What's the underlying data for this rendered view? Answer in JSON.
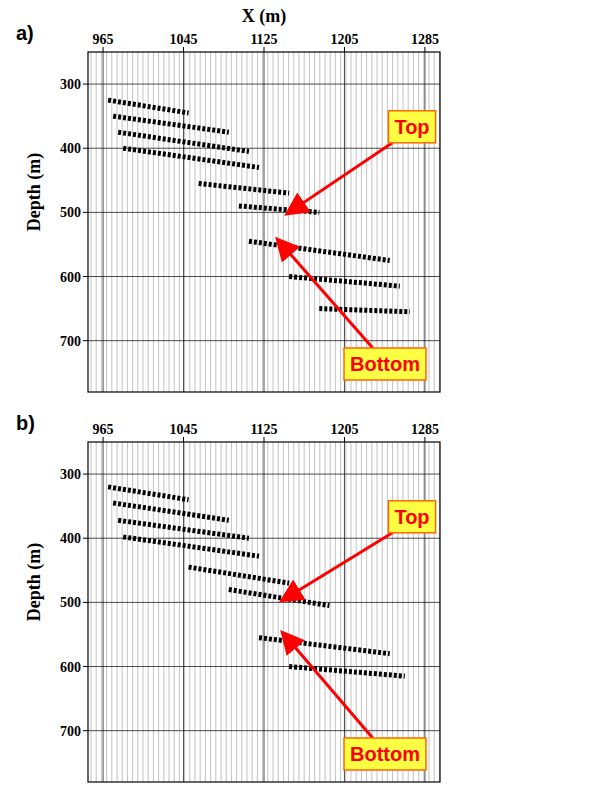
{
  "chart_data": [
    {
      "type": "wiggle",
      "panel_label": "a)",
      "xlabel": "X (m)",
      "ylabel": "Depth (m)",
      "xlim": [
        950,
        1300
      ],
      "xticks": [
        965,
        1045,
        1125,
        1205,
        1285
      ],
      "ylim": [
        250,
        780
      ],
      "yticks": [
        300,
        400,
        500,
        600,
        700
      ],
      "grid": true,
      "series": [
        {
          "x": [
            970,
            1050
          ],
          "values": [
            325,
            345
          ]
        },
        {
          "x": [
            975,
            1090
          ],
          "values": [
            350,
            375
          ]
        },
        {
          "x": [
            980,
            1110
          ],
          "values": [
            375,
            405
          ]
        },
        {
          "x": [
            985,
            1120
          ],
          "values": [
            400,
            430
          ]
        },
        {
          "x": [
            1060,
            1150
          ],
          "values": [
            455,
            470
          ]
        },
        {
          "x": [
            1100,
            1180
          ],
          "values": [
            490,
            500
          ]
        },
        {
          "x": [
            1110,
            1250
          ],
          "values": [
            545,
            575
          ]
        },
        {
          "x": [
            1150,
            1260
          ],
          "values": [
            600,
            615
          ]
        },
        {
          "x": [
            1180,
            1270
          ],
          "values": [
            650,
            655
          ]
        }
      ],
      "annotations": [
        {
          "text": "Top",
          "x": 1150,
          "y": 500
        },
        {
          "text": "Bottom",
          "x": 1140,
          "y": 545
        }
      ]
    },
    {
      "type": "wiggle",
      "panel_label": "b)",
      "ylabel": "Depth (m)",
      "xlim": [
        950,
        1300
      ],
      "xticks": [
        965,
        1045,
        1125,
        1205,
        1285
      ],
      "ylim": [
        250,
        780
      ],
      "yticks": [
        300,
        400,
        500,
        600,
        700
      ],
      "grid": true,
      "series": [
        {
          "x": [
            970,
            1050
          ],
          "values": [
            320,
            340
          ]
        },
        {
          "x": [
            975,
            1090
          ],
          "values": [
            345,
            372
          ]
        },
        {
          "x": [
            980,
            1110
          ],
          "values": [
            372,
            400
          ]
        },
        {
          "x": [
            985,
            1120
          ],
          "values": [
            398,
            428
          ]
        },
        {
          "x": [
            1050,
            1150
          ],
          "values": [
            445,
            470
          ]
        },
        {
          "x": [
            1090,
            1190
          ],
          "values": [
            480,
            505
          ]
        },
        {
          "x": [
            1120,
            1250
          ],
          "values": [
            555,
            580
          ]
        },
        {
          "x": [
            1150,
            1265
          ],
          "values": [
            600,
            615
          ]
        }
      ],
      "annotations": [
        {
          "text": "Top",
          "x": 1145,
          "y": 495
        },
        {
          "text": "Bottom",
          "x": 1145,
          "y": 550
        }
      ]
    }
  ]
}
